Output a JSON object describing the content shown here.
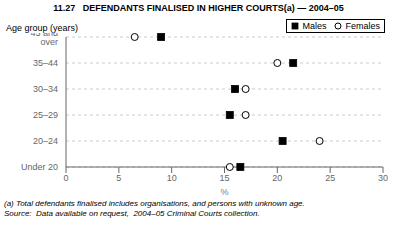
{
  "chart_data": {
    "type": "dot",
    "title": "11.27   DEFENDANTS FINALISED IN HIGHER COURTS(a) — 2004–05",
    "ylabel": "Age group (years)",
    "xlabel": "%",
    "orientation": "horizontal",
    "categories": [
      "45 and over",
      "35–44",
      "30–34",
      "25–29",
      "20–24",
      "Under 20"
    ],
    "series": [
      {
        "name": "Males",
        "color": "#000000",
        "marker": "square",
        "values": [
          9.0,
          21.5,
          16.0,
          15.5,
          20.5,
          16.5
        ]
      },
      {
        "name": "Females",
        "color": "#ffffff",
        "marker": "circle",
        "values": [
          6.5,
          20.0,
          17.0,
          17.0,
          24.0,
          15.5
        ]
      }
    ],
    "xlim": [
      0,
      30
    ],
    "xticks": [
      0,
      5,
      10,
      15,
      20,
      25,
      30
    ],
    "grid": true,
    "legend": "upper right",
    "annotations": [
      "(a) Total defendants finalised includes organisations, and persons with unknown age.",
      "Source:  Data available on request,  2004–05 Criminal Courts collection."
    ]
  }
}
